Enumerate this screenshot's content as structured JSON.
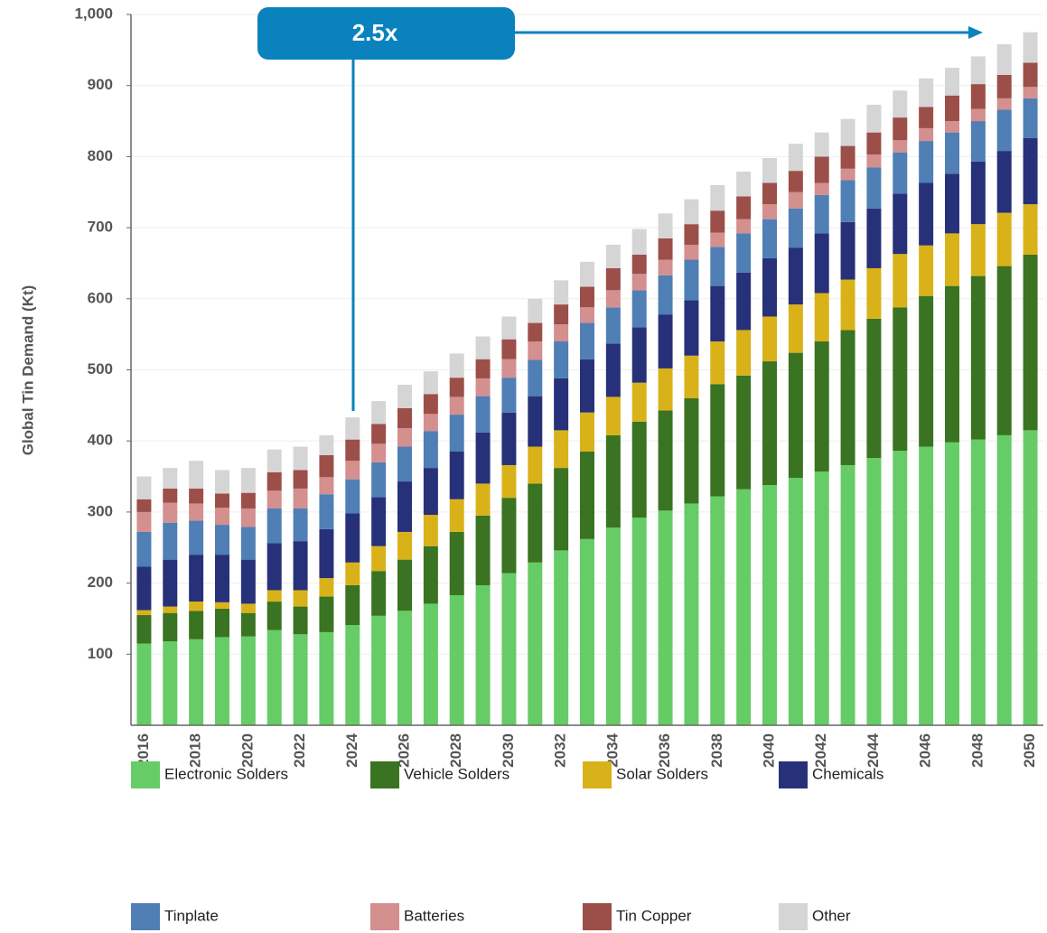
{
  "chart_data": {
    "type": "stacked_bar",
    "y_label": "Global Tin Demand (Kt)",
    "annotation": "2.5x",
    "categories": [
      "2016",
      null,
      "2018",
      null,
      "2020",
      null,
      "2022",
      null,
      "2024",
      null,
      "2026",
      null,
      "2028",
      null,
      "2030",
      null,
      "2032",
      null,
      "2034",
      null,
      "2036",
      null,
      "2038",
      null,
      "2040",
      null,
      "2042",
      null,
      "2044",
      null,
      "2046",
      null,
      "2048",
      null,
      "2050"
    ],
    "ylim": [
      0,
      1000
    ],
    "yticks": [
      100,
      200,
      300,
      400,
      500,
      600,
      700,
      800,
      900,
      {
        "value": 1000,
        "label": "1,000"
      }
    ],
    "grid": true,
    "legend": "bottom",
    "series": [
      {
        "name": "Electronic Solders",
        "color": "#66cc66",
        "values": [
          115,
          118,
          121,
          124,
          125,
          134,
          128,
          131,
          141,
          154,
          161,
          171,
          183,
          197,
          214,
          229,
          246,
          262,
          278,
          292,
          302,
          312,
          322,
          332,
          338,
          348,
          357,
          366,
          376,
          386,
          392,
          398,
          402,
          408,
          415
        ]
      },
      {
        "name": "Vehicle Solders",
        "color": "#3a7321",
        "values": [
          40,
          40,
          40,
          40,
          33,
          40,
          39,
          50,
          56,
          63,
          72,
          81,
          89,
          98,
          106,
          111,
          116,
          123,
          130,
          135,
          141,
          148,
          158,
          160,
          174,
          176,
          183,
          190,
          196,
          202,
          212,
          220,
          230,
          238,
          247
        ]
      },
      {
        "name": "Solar Solders",
        "color": "#d9b21a",
        "values": [
          7,
          9,
          13,
          9,
          13,
          16,
          23,
          26,
          32,
          35,
          39,
          44,
          46,
          45,
          46,
          52,
          53,
          55,
          54,
          55,
          59,
          60,
          60,
          64,
          63,
          68,
          68,
          71,
          71,
          75,
          71,
          74,
          73,
          75,
          71
        ]
      },
      {
        "name": "Chemicals",
        "color": "#27317a",
        "values": [
          61,
          66,
          66,
          67,
          62,
          66,
          69,
          69,
          69,
          69,
          71,
          66,
          67,
          72,
          74,
          71,
          73,
          75,
          75,
          78,
          76,
          78,
          78,
          81,
          82,
          80,
          84,
          81,
          84,
          85,
          88,
          84,
          88,
          87,
          93
        ]
      },
      {
        "name": "Tinplate",
        "color": "#4f7fb4",
        "values": [
          49,
          52,
          48,
          42,
          46,
          49,
          46,
          49,
          48,
          49,
          49,
          52,
          52,
          51,
          49,
          51,
          52,
          51,
          51,
          52,
          55,
          57,
          55,
          55,
          55,
          55,
          54,
          59,
          58,
          58,
          59,
          58,
          57,
          58,
          56
        ]
      },
      {
        "name": "Batteries",
        "color": "#d48f8f",
        "values": [
          28,
          28,
          24,
          24,
          26,
          25,
          28,
          24,
          26,
          26,
          26,
          24,
          25,
          25,
          26,
          26,
          24,
          22,
          24,
          23,
          22,
          21,
          20,
          20,
          21,
          23,
          17,
          16,
          18,
          17,
          18,
          16,
          17,
          16,
          16
        ]
      },
      {
        "name": "Tin Copper",
        "color": "#9c4f48",
        "values": [
          18,
          20,
          21,
          20,
          22,
          26,
          26,
          31,
          30,
          28,
          28,
          28,
          27,
          27,
          28,
          26,
          28,
          29,
          31,
          27,
          30,
          29,
          31,
          32,
          30,
          30,
          37,
          32,
          31,
          32,
          30,
          36,
          35,
          33,
          34
        ]
      },
      {
        "name": "Other",
        "color": "#d5d5d5",
        "values": [
          32,
          29,
          39,
          33,
          35,
          32,
          33,
          28,
          31,
          32,
          33,
          32,
          34,
          32,
          32,
          34,
          34,
          35,
          33,
          36,
          35,
          35,
          36,
          35,
          35,
          38,
          34,
          38,
          39,
          38,
          40,
          39,
          39,
          43,
          43
        ]
      }
    ]
  }
}
